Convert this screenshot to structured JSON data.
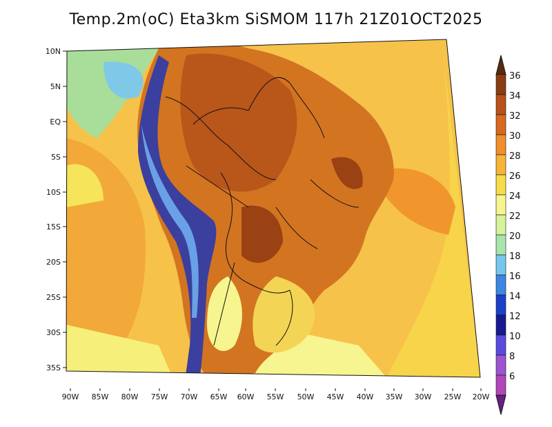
{
  "title": "Temp.2m(oC) Eta3km SiSMOM 117h 21Z01OCT2025",
  "lat_labels": [
    "10N",
    "5N",
    "EQ",
    "5S",
    "10S",
    "15S",
    "20S",
    "25S",
    "30S",
    "35S"
  ],
  "lon_labels": [
    "90W",
    "85W",
    "80W",
    "75W",
    "70W",
    "65W",
    "60W",
    "55W",
    "50W",
    "45W",
    "40W",
    "35W",
    "30W",
    "25W",
    "20W"
  ],
  "colorbar": {
    "labels": [
      "36",
      "34",
      "32",
      "30",
      "28",
      "26",
      "24",
      "22",
      "20",
      "18",
      "16",
      "14",
      "12",
      "10",
      "8",
      "6"
    ],
    "colors": [
      "#5a2a0c",
      "#8b3d12",
      "#b7521a",
      "#d9691f",
      "#f08f2b",
      "#f7b43a",
      "#f6dc4a",
      "#f7f58f",
      "#d6f29c",
      "#a9e4ad",
      "#78c6ee",
      "#3e86e2",
      "#1c41c9",
      "#16198f",
      "#5a4be0",
      "#9a55cf",
      "#b046b8",
      "#6a1e86"
    ]
  },
  "map": {
    "projection": "lambert-conic",
    "ocean_color": "#f6c24a",
    "land_color": "#d37421",
    "andes_color": "#3b3f9e"
  }
}
